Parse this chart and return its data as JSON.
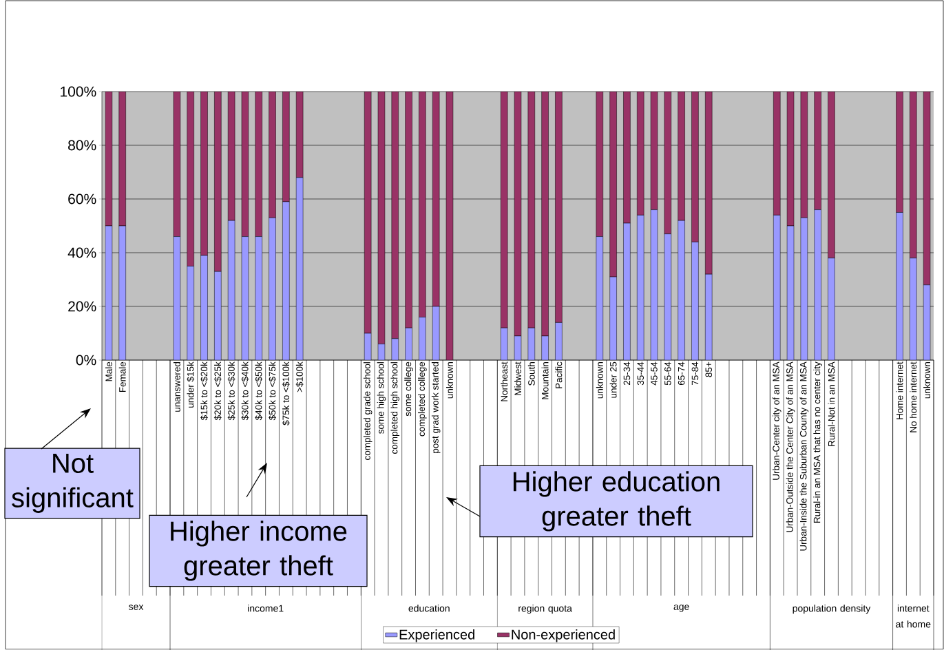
{
  "chart_data": {
    "type": "bar",
    "stacked": true,
    "grid": "y",
    "legend": "bottom",
    "categories": [
      "Male",
      "Female",
      null,
      null,
      null,
      "unanswered",
      "under $15k",
      "$15k to <$20k",
      "$20k to <$25k",
      "$25k to <$30k",
      "$30k to <$40k",
      "$40k to <$50k",
      "$50k to <$75k",
      "$75k to <$100k",
      ">$100k",
      null,
      null,
      null,
      null,
      "completed grade school",
      "some high school",
      "completed high school",
      "some college",
      "completed college",
      "post grad work started",
      "unknown",
      null,
      null,
      null,
      "Northeast",
      "Midwest",
      "South",
      "Mountain",
      "Pacific",
      null,
      null,
      "unknown",
      "under 25",
      "25-34",
      "35-44",
      "45-54",
      "55-64",
      "65-74",
      "75-84",
      "85+",
      null,
      null,
      null,
      null,
      "Urban-Center city of an MSA",
      "Urban-Outside the Center City of an MSA",
      "Urban-Inside the Suburban County of an MSA",
      "Rural-in an MSA that has no center city",
      "Rural-Not in an MSA",
      null,
      null,
      null,
      null,
      "Home internet",
      "No home internet",
      "unknown"
    ],
    "series": [
      {
        "name": "Experienced",
        "color": "#9999ff",
        "values": [
          50,
          50,
          null,
          null,
          null,
          46,
          35,
          39,
          33,
          52,
          46,
          46,
          53,
          59,
          68,
          null,
          null,
          null,
          null,
          10,
          6,
          8,
          12,
          16,
          20,
          0,
          null,
          null,
          null,
          12,
          9,
          12,
          9,
          14,
          null,
          null,
          46,
          31,
          51,
          54,
          56,
          47,
          52,
          44,
          32,
          null,
          null,
          null,
          null,
          54,
          50,
          53,
          56,
          38,
          null,
          null,
          null,
          null,
          55,
          38,
          28
        ]
      },
      {
        "name": "Non-experienced",
        "color": "#993366",
        "values": [
          50,
          50,
          null,
          null,
          null,
          54,
          65,
          61,
          67,
          48,
          54,
          54,
          47,
          41,
          32,
          null,
          null,
          null,
          null,
          90,
          94,
          92,
          88,
          84,
          80,
          100,
          null,
          null,
          null,
          88,
          91,
          88,
          91,
          86,
          null,
          null,
          54,
          69,
          49,
          46,
          44,
          53,
          48,
          56,
          68,
          null,
          null,
          null,
          null,
          46,
          50,
          47,
          44,
          62,
          null,
          null,
          null,
          null,
          45,
          62,
          72
        ]
      }
    ],
    "ylim": [
      0,
      100
    ],
    "yticks": [
      {
        "value": 0,
        "label": "0%"
      },
      {
        "value": 20,
        "label": "20%"
      },
      {
        "value": 40,
        "label": "40%"
      },
      {
        "value": 60,
        "label": "60%"
      },
      {
        "value": 80,
        "label": "80%"
      },
      {
        "value": 100,
        "label": "100%"
      }
    ],
    "annotations": [
      "sex",
      "income1",
      "education",
      "region quota",
      "age",
      "population density",
      "internet at home",
      "Not significant",
      "Higher income greater theft",
      "Higher education greater theft"
    ]
  }
}
